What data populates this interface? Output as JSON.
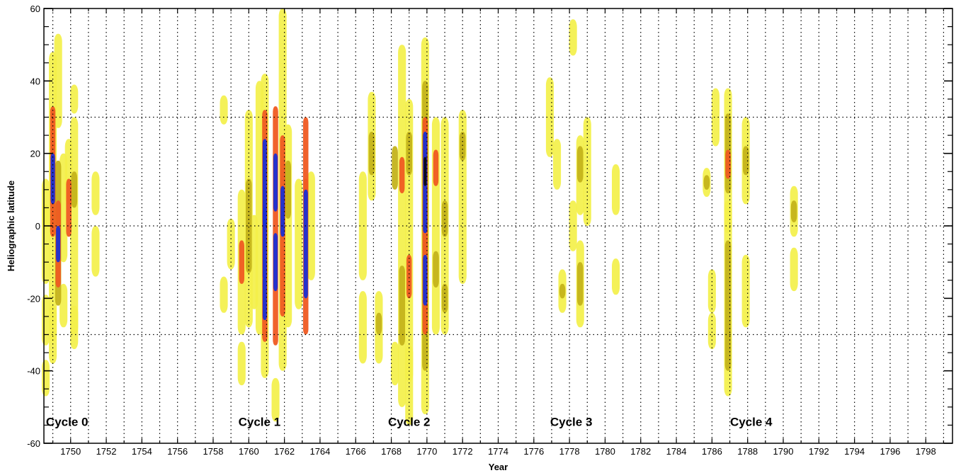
{
  "chart_data": {
    "type": "heatmap",
    "xlabel": "Year",
    "ylabel": "Heliographic latitude",
    "xlim": [
      1748.5,
      1799.5
    ],
    "ylim": [
      -60,
      60
    ],
    "x_ticks": [
      1750,
      1752,
      1754,
      1756,
      1758,
      1760,
      1762,
      1764,
      1766,
      1768,
      1770,
      1772,
      1774,
      1776,
      1778,
      1780,
      1782,
      1784,
      1786,
      1788,
      1790,
      1792,
      1794,
      1796,
      1798
    ],
    "y_ticks": [
      -60,
      -40,
      -20,
      0,
      20,
      40,
      60
    ],
    "grid": {
      "vertical_dotted_every_years": 1,
      "horizontal_dotted_at": [
        -30,
        0,
        30
      ]
    },
    "intensity_scale": [
      "yellow (low)",
      "olive",
      "orange",
      "red",
      "blue",
      "black (high)"
    ],
    "cycle_labels": [
      {
        "text": "Cycle 0",
        "year": 1749.8,
        "lat": -54
      },
      {
        "text": "Cycle 1",
        "year": 1760.6,
        "lat": -54
      },
      {
        "text": "Cycle 2",
        "year": 1769.0,
        "lat": -54
      },
      {
        "text": "Cycle 3",
        "year": 1778.1,
        "lat": -54
      },
      {
        "text": "Cycle 4",
        "year": 1788.2,
        "lat": -54
      }
    ],
    "spots": [
      {
        "year": 1748.6,
        "lat": -42,
        "h": 10,
        "level": 1
      },
      {
        "year": 1748.6,
        "lat": 6,
        "h": 14,
        "level": 1
      },
      {
        "year": 1748.6,
        "lat": -5,
        "h": 22,
        "level": 1
      },
      {
        "year": 1748.6,
        "lat": -26,
        "h": 14,
        "level": 1
      },
      {
        "year": 1749.0,
        "lat": 8,
        "h": 80,
        "level": 1
      },
      {
        "year": 1749.0,
        "lat": 15,
        "h": 36,
        "level": 3
      },
      {
        "year": 1749.0,
        "lat": 13,
        "h": 14,
        "level": 4
      },
      {
        "year": 1749.0,
        "lat": -30,
        "h": 16,
        "level": 1
      },
      {
        "year": 1749.3,
        "lat": -2,
        "h": 40,
        "level": 2
      },
      {
        "year": 1749.3,
        "lat": -5,
        "h": 24,
        "level": 3
      },
      {
        "year": 1749.3,
        "lat": -5,
        "h": 10,
        "level": 4
      },
      {
        "year": 1749.3,
        "lat": 40,
        "h": 26,
        "level": 1
      },
      {
        "year": 1749.6,
        "lat": 5,
        "h": 30,
        "level": 1
      },
      {
        "year": 1749.6,
        "lat": -22,
        "h": 12,
        "level": 1
      },
      {
        "year": 1749.9,
        "lat": 5,
        "h": 16,
        "level": 3
      },
      {
        "year": 1749.9,
        "lat": 15,
        "h": 18,
        "level": 1
      },
      {
        "year": 1750.2,
        "lat": 0,
        "h": 60,
        "level": 1
      },
      {
        "year": 1750.2,
        "lat": 10,
        "h": 10,
        "level": 2
      },
      {
        "year": 1750.2,
        "lat": -28,
        "h": 12,
        "level": 1
      },
      {
        "year": 1750.2,
        "lat": 35,
        "h": 8,
        "level": 1
      },
      {
        "year": 1751.4,
        "lat": 9,
        "h": 12,
        "level": 1
      },
      {
        "year": 1751.4,
        "lat": -7,
        "h": 14,
        "level": 1
      },
      {
        "year": 1758.6,
        "lat": 32,
        "h": 8,
        "level": 1
      },
      {
        "year": 1758.6,
        "lat": -19,
        "h": 10,
        "level": 1
      },
      {
        "year": 1759.0,
        "lat": -5,
        "h": 14,
        "level": 1
      },
      {
        "year": 1759.6,
        "lat": -10,
        "h": 40,
        "level": 1
      },
      {
        "year": 1759.6,
        "lat": -10,
        "h": 12,
        "level": 3
      },
      {
        "year": 1759.6,
        "lat": -38,
        "h": 12,
        "level": 1
      },
      {
        "year": 1760.0,
        "lat": 2,
        "h": 60,
        "level": 1
      },
      {
        "year": 1760.0,
        "lat": 0,
        "h": 26,
        "level": 2
      },
      {
        "year": 1760.3,
        "lat": -10,
        "h": 26,
        "level": 1
      },
      {
        "year": 1760.6,
        "lat": 5,
        "h": 70,
        "level": 1
      },
      {
        "year": 1760.9,
        "lat": 0,
        "h": 84,
        "level": 1
      },
      {
        "year": 1760.9,
        "lat": 0,
        "h": 64,
        "level": 3
      },
      {
        "year": 1760.9,
        "lat": 12,
        "h": 24,
        "level": 4
      },
      {
        "year": 1760.9,
        "lat": -5,
        "h": 20,
        "level": 4
      },
      {
        "year": 1760.9,
        "lat": -20,
        "h": 12,
        "level": 4
      },
      {
        "year": 1761.5,
        "lat": 0,
        "h": 66,
        "level": 3
      },
      {
        "year": 1761.5,
        "lat": 12,
        "h": 16,
        "level": 4
      },
      {
        "year": 1761.5,
        "lat": -10,
        "h": 16,
        "level": 4
      },
      {
        "year": 1761.5,
        "lat": -48,
        "h": 12,
        "level": 1
      },
      {
        "year": 1761.9,
        "lat": 10,
        "h": 100,
        "level": 1
      },
      {
        "year": 1761.9,
        "lat": 0,
        "h": 50,
        "level": 3
      },
      {
        "year": 1761.9,
        "lat": 4,
        "h": 14,
        "level": 4
      },
      {
        "year": 1762.2,
        "lat": 0,
        "h": 56,
        "level": 1
      },
      {
        "year": 1762.2,
        "lat": 10,
        "h": 16,
        "level": 2
      },
      {
        "year": 1762.8,
        "lat": -5,
        "h": 36,
        "level": 1
      },
      {
        "year": 1763.2,
        "lat": 0,
        "h": 60,
        "level": 3
      },
      {
        "year": 1763.2,
        "lat": -5,
        "h": 30,
        "level": 4
      },
      {
        "year": 1763.2,
        "lat": 8,
        "h": 10,
        "level": 3
      },
      {
        "year": 1763.5,
        "lat": 0,
        "h": 30,
        "level": 1
      },
      {
        "year": 1766.4,
        "lat": 0,
        "h": 30,
        "level": 1
      },
      {
        "year": 1766.4,
        "lat": -28,
        "h": 20,
        "level": 1
      },
      {
        "year": 1766.9,
        "lat": 22,
        "h": 30,
        "level": 1
      },
      {
        "year": 1766.9,
        "lat": 20,
        "h": 12,
        "level": 2
      },
      {
        "year": 1767.3,
        "lat": -28,
        "h": 20,
        "level": 1
      },
      {
        "year": 1767.3,
        "lat": -27,
        "h": 6,
        "level": 2
      },
      {
        "year": 1768.2,
        "lat": 16,
        "h": 12,
        "level": 2
      },
      {
        "year": 1768.2,
        "lat": -38,
        "h": 12,
        "level": 1
      },
      {
        "year": 1768.6,
        "lat": 0,
        "h": 100,
        "level": 1
      },
      {
        "year": 1768.6,
        "lat": -22,
        "h": 22,
        "level": 2
      },
      {
        "year": 1768.6,
        "lat": 14,
        "h": 10,
        "level": 3
      },
      {
        "year": 1769.0,
        "lat": -10,
        "h": 90,
        "level": 1
      },
      {
        "year": 1769.0,
        "lat": -14,
        "h": 12,
        "level": 3
      },
      {
        "year": 1769.0,
        "lat": 20,
        "h": 12,
        "level": 2
      },
      {
        "year": 1769.0,
        "lat": -38,
        "h": 10,
        "level": 1
      },
      {
        "year": 1769.9,
        "lat": 0,
        "h": 104,
        "level": 1
      },
      {
        "year": 1769.9,
        "lat": 0,
        "h": 80,
        "level": 2
      },
      {
        "year": 1769.9,
        "lat": 0,
        "h": 60,
        "level": 3
      },
      {
        "year": 1769.9,
        "lat": 12,
        "h": 28,
        "level": 4
      },
      {
        "year": 1769.9,
        "lat": 15,
        "h": 8,
        "level": 5
      },
      {
        "year": 1769.9,
        "lat": -15,
        "h": 14,
        "level": 4
      },
      {
        "year": 1770.5,
        "lat": 0,
        "h": 60,
        "level": 1
      },
      {
        "year": 1770.5,
        "lat": 16,
        "h": 10,
        "level": 3
      },
      {
        "year": 1770.5,
        "lat": -12,
        "h": 10,
        "level": 2
      },
      {
        "year": 1771.0,
        "lat": 0,
        "h": 60,
        "level": 1
      },
      {
        "year": 1771.0,
        "lat": 2,
        "h": 10,
        "level": 2
      },
      {
        "year": 1771.0,
        "lat": -20,
        "h": 8,
        "level": 2
      },
      {
        "year": 1772.0,
        "lat": 8,
        "h": 48,
        "level": 1
      },
      {
        "year": 1772.0,
        "lat": 22,
        "h": 8,
        "level": 2
      },
      {
        "year": 1776.9,
        "lat": 30,
        "h": 22,
        "level": 1
      },
      {
        "year": 1777.3,
        "lat": 17,
        "h": 14,
        "level": 1
      },
      {
        "year": 1777.6,
        "lat": -18,
        "h": 12,
        "level": 1
      },
      {
        "year": 1777.6,
        "lat": -18,
        "h": 4,
        "level": 2
      },
      {
        "year": 1778.2,
        "lat": 52,
        "h": 10,
        "level": 1
      },
      {
        "year": 1778.2,
        "lat": 0,
        "h": 14,
        "level": 1
      },
      {
        "year": 1778.6,
        "lat": 14,
        "h": 22,
        "level": 1
      },
      {
        "year": 1778.6,
        "lat": 17,
        "h": 10,
        "level": 2
      },
      {
        "year": 1778.6,
        "lat": -16,
        "h": 24,
        "level": 1
      },
      {
        "year": 1778.6,
        "lat": -16,
        "h": 12,
        "level": 2
      },
      {
        "year": 1779.0,
        "lat": 15,
        "h": 30,
        "level": 1
      },
      {
        "year": 1780.6,
        "lat": 10,
        "h": 14,
        "level": 1
      },
      {
        "year": 1780.6,
        "lat": -14,
        "h": 10,
        "level": 1
      },
      {
        "year": 1785.7,
        "lat": 12,
        "h": 8,
        "level": 1
      },
      {
        "year": 1785.7,
        "lat": 12,
        "h": 4,
        "level": 2
      },
      {
        "year": 1786.0,
        "lat": -18,
        "h": 12,
        "level": 1
      },
      {
        "year": 1786.0,
        "lat": -29,
        "h": 10,
        "level": 1
      },
      {
        "year": 1786.2,
        "lat": 30,
        "h": 16,
        "level": 1
      },
      {
        "year": 1786.9,
        "lat": 18,
        "h": 40,
        "level": 1
      },
      {
        "year": 1786.9,
        "lat": 20,
        "h": 22,
        "level": 2
      },
      {
        "year": 1786.9,
        "lat": 17,
        "h": 8,
        "level": 3
      },
      {
        "year": 1786.9,
        "lat": -20,
        "h": 54,
        "level": 1
      },
      {
        "year": 1786.9,
        "lat": -22,
        "h": 36,
        "level": 2
      },
      {
        "year": 1787.9,
        "lat": 18,
        "h": 24,
        "level": 1
      },
      {
        "year": 1787.9,
        "lat": 18,
        "h": 8,
        "level": 2
      },
      {
        "year": 1787.9,
        "lat": -18,
        "h": 20,
        "level": 1
      },
      {
        "year": 1790.6,
        "lat": 4,
        "h": 14,
        "level": 1
      },
      {
        "year": 1790.6,
        "lat": 4,
        "h": 6,
        "level": 2
      },
      {
        "year": 1790.6,
        "lat": -12,
        "h": 12,
        "level": 1
      }
    ],
    "colors": {
      "level1": "#f3f04a",
      "level2": "#c4b31b",
      "level3": "#ef5a22",
      "level4": "#1a2fd4",
      "level5": "#080814",
      "axes": "#000000",
      "background": "#ffffff"
    }
  }
}
